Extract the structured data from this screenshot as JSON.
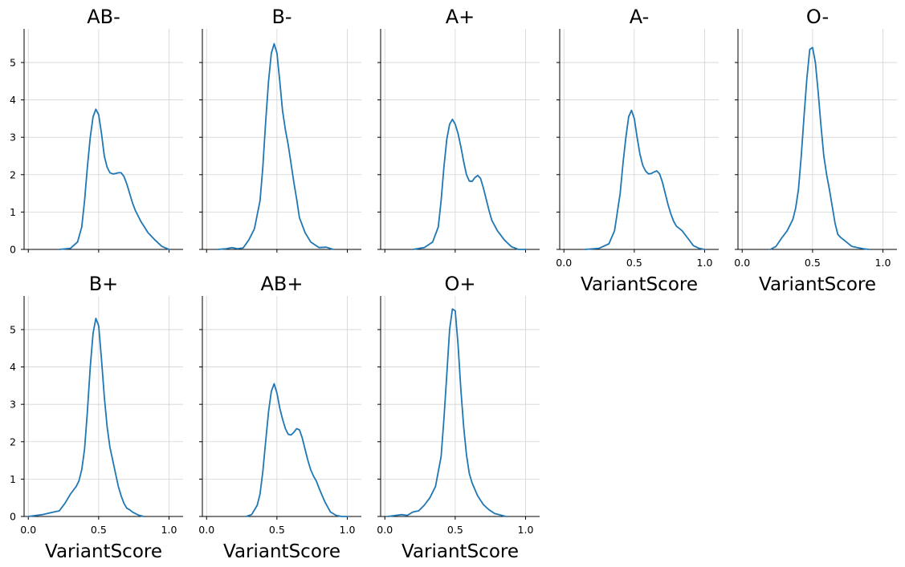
{
  "colors": {
    "line": "#1f77b4",
    "grid": "#d3d3d3",
    "axis": "#000000"
  },
  "chart_data": {
    "type": "line",
    "kind": "kde-facet-grid",
    "xlabel": "VariantScore",
    "ylabel": "",
    "xlim": [
      -0.03,
      1.1
    ],
    "ylim": [
      0,
      5.9
    ],
    "xticks": [
      0.0,
      0.5,
      1.0
    ],
    "xtick_labels": [
      "0.0",
      "0.5",
      "1.0"
    ],
    "yticks": [
      0,
      1,
      2,
      3,
      4,
      5
    ],
    "ytick_labels": [
      "0",
      "1",
      "2",
      "3",
      "4",
      "5"
    ],
    "grid": true,
    "facets": [
      {
        "title": "AB-",
        "x": [
          0.22,
          0.3,
          0.35,
          0.38,
          0.4,
          0.42,
          0.44,
          0.46,
          0.48,
          0.5,
          0.52,
          0.54,
          0.56,
          0.58,
          0.6,
          0.62,
          0.64,
          0.66,
          0.68,
          0.7,
          0.72,
          0.74,
          0.76,
          0.8,
          0.85,
          0.9,
          0.95,
          1.0
        ],
        "y": [
          0,
          0.03,
          0.2,
          0.6,
          1.3,
          2.2,
          3.0,
          3.55,
          3.75,
          3.6,
          3.1,
          2.5,
          2.2,
          2.05,
          2.02,
          2.03,
          2.05,
          2.05,
          1.95,
          1.75,
          1.5,
          1.25,
          1.05,
          0.75,
          0.45,
          0.25,
          0.08,
          0
        ]
      },
      {
        "title": "B-",
        "x": [
          0.08,
          0.14,
          0.18,
          0.22,
          0.26,
          0.3,
          0.34,
          0.38,
          0.4,
          0.42,
          0.44,
          0.46,
          0.48,
          0.5,
          0.52,
          0.54,
          0.56,
          0.58,
          0.6,
          0.62,
          0.64,
          0.66,
          0.7,
          0.74,
          0.8,
          0.85,
          0.9
        ],
        "y": [
          0,
          0.02,
          0.05,
          0.02,
          0.04,
          0.25,
          0.55,
          1.3,
          2.2,
          3.4,
          4.5,
          5.25,
          5.5,
          5.25,
          4.5,
          3.7,
          3.2,
          2.8,
          2.3,
          1.8,
          1.35,
          0.85,
          0.45,
          0.2,
          0.05,
          0.06,
          0
        ]
      },
      {
        "title": "A+",
        "x": [
          0.2,
          0.28,
          0.34,
          0.38,
          0.4,
          0.42,
          0.44,
          0.46,
          0.48,
          0.5,
          0.52,
          0.54,
          0.56,
          0.58,
          0.6,
          0.62,
          0.64,
          0.66,
          0.68,
          0.7,
          0.72,
          0.74,
          0.76,
          0.8,
          0.85,
          0.9,
          0.95,
          1.0
        ],
        "y": [
          0,
          0.05,
          0.2,
          0.6,
          1.3,
          2.2,
          2.95,
          3.35,
          3.48,
          3.35,
          3.1,
          2.75,
          2.35,
          2.0,
          1.83,
          1.82,
          1.92,
          1.98,
          1.9,
          1.65,
          1.35,
          1.05,
          0.78,
          0.5,
          0.25,
          0.07,
          0,
          0
        ]
      },
      {
        "title": "A-",
        "x": [
          0.15,
          0.25,
          0.32,
          0.36,
          0.4,
          0.42,
          0.44,
          0.46,
          0.48,
          0.5,
          0.52,
          0.54,
          0.56,
          0.58,
          0.6,
          0.62,
          0.64,
          0.66,
          0.68,
          0.7,
          0.72,
          0.74,
          0.76,
          0.78,
          0.8,
          0.84,
          0.88,
          0.92,
          0.96,
          1.0
        ],
        "y": [
          0,
          0.03,
          0.15,
          0.5,
          1.5,
          2.3,
          3.0,
          3.55,
          3.72,
          3.5,
          3.0,
          2.55,
          2.25,
          2.1,
          2.02,
          2.03,
          2.07,
          2.1,
          2.02,
          1.8,
          1.5,
          1.2,
          0.95,
          0.75,
          0.62,
          0.5,
          0.3,
          0.1,
          0.03,
          0
        ]
      },
      {
        "title": "O-",
        "x": [
          0.2,
          0.24,
          0.28,
          0.32,
          0.36,
          0.38,
          0.4,
          0.42,
          0.44,
          0.46,
          0.48,
          0.5,
          0.52,
          0.54,
          0.56,
          0.58,
          0.6,
          0.62,
          0.64,
          0.66,
          0.68,
          0.7,
          0.74,
          0.78,
          0.82,
          0.86,
          0.9
        ],
        "y": [
          0,
          0.08,
          0.3,
          0.5,
          0.8,
          1.1,
          1.6,
          2.5,
          3.6,
          4.6,
          5.35,
          5.4,
          5.0,
          4.2,
          3.3,
          2.5,
          2.0,
          1.6,
          1.15,
          0.7,
          0.4,
          0.32,
          0.2,
          0.08,
          0.05,
          0.02,
          0
        ]
      },
      {
        "title": "B+",
        "x": [
          0.0,
          0.1,
          0.16,
          0.22,
          0.26,
          0.3,
          0.34,
          0.36,
          0.38,
          0.4,
          0.42,
          0.44,
          0.46,
          0.48,
          0.5,
          0.52,
          0.54,
          0.56,
          0.58,
          0.6,
          0.62,
          0.64,
          0.66,
          0.68,
          0.7,
          0.72,
          0.74,
          0.78,
          0.82
        ],
        "y": [
          0,
          0.05,
          0.1,
          0.15,
          0.35,
          0.6,
          0.8,
          0.95,
          1.25,
          1.8,
          2.8,
          4.0,
          4.9,
          5.3,
          5.1,
          4.2,
          3.2,
          2.4,
          1.85,
          1.5,
          1.15,
          0.8,
          0.55,
          0.35,
          0.22,
          0.18,
          0.12,
          0.04,
          0
        ]
      },
      {
        "title": "AB+",
        "x": [
          0.28,
          0.32,
          0.36,
          0.38,
          0.4,
          0.42,
          0.44,
          0.46,
          0.48,
          0.5,
          0.52,
          0.54,
          0.56,
          0.58,
          0.6,
          0.62,
          0.64,
          0.66,
          0.68,
          0.7,
          0.72,
          0.74,
          0.76,
          0.78,
          0.8,
          0.84,
          0.88,
          0.92,
          0.96,
          1.0
        ],
        "y": [
          0,
          0.05,
          0.3,
          0.6,
          1.2,
          2.0,
          2.8,
          3.35,
          3.55,
          3.3,
          2.9,
          2.6,
          2.35,
          2.2,
          2.18,
          2.25,
          2.35,
          2.32,
          2.1,
          1.8,
          1.5,
          1.25,
          1.08,
          0.95,
          0.75,
          0.4,
          0.12,
          0.03,
          0,
          0
        ]
      },
      {
        "title": "O+",
        "x": [
          0.02,
          0.08,
          0.12,
          0.16,
          0.2,
          0.24,
          0.28,
          0.32,
          0.36,
          0.4,
          0.42,
          0.44,
          0.46,
          0.48,
          0.5,
          0.52,
          0.54,
          0.56,
          0.58,
          0.6,
          0.62,
          0.64,
          0.66,
          0.7,
          0.74,
          0.78,
          0.82,
          0.86
        ],
        "y": [
          0,
          0.03,
          0.05,
          0.03,
          0.12,
          0.15,
          0.3,
          0.5,
          0.8,
          1.6,
          2.6,
          3.8,
          5.0,
          5.55,
          5.5,
          4.6,
          3.4,
          2.4,
          1.65,
          1.15,
          0.9,
          0.72,
          0.55,
          0.32,
          0.18,
          0.08,
          0.04,
          0
        ]
      }
    ]
  }
}
